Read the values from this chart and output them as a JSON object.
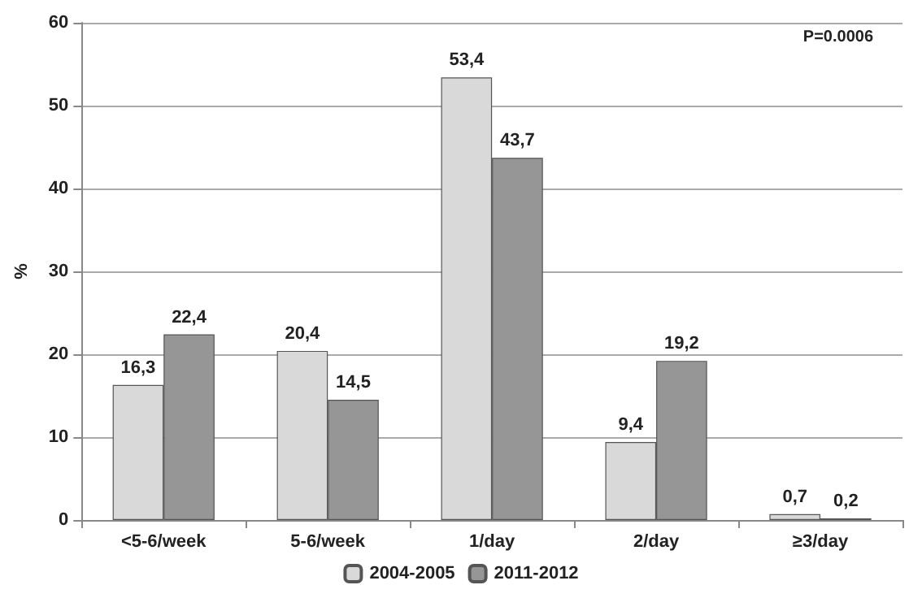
{
  "chart_data": {
    "type": "bar",
    "ylabel": "%",
    "categories": [
      "<5-6/week",
      "5-6/week",
      "1/day",
      "2/day",
      "≥3/day"
    ],
    "series": [
      {
        "name": "2004-2005",
        "color": "#d9d9d9",
        "values": [
          16.3,
          20.4,
          53.4,
          9.4,
          0.7
        ],
        "value_labels": [
          "16,3",
          "20,4",
          "53,4",
          "9,4",
          "0,7"
        ]
      },
      {
        "name": "2011-2012",
        "color": "#969696",
        "values": [
          22.4,
          14.5,
          43.7,
          19.2,
          0.2
        ],
        "value_labels": [
          "22,4",
          "14,5",
          "43,7",
          "19,2",
          "0,2"
        ]
      }
    ],
    "ylim": [
      0,
      60
    ],
    "yticks": [
      0,
      10,
      20,
      30,
      40,
      50,
      60
    ],
    "grid": "y",
    "legend": "bottom",
    "annotations": [
      "P=0.0006"
    ]
  }
}
